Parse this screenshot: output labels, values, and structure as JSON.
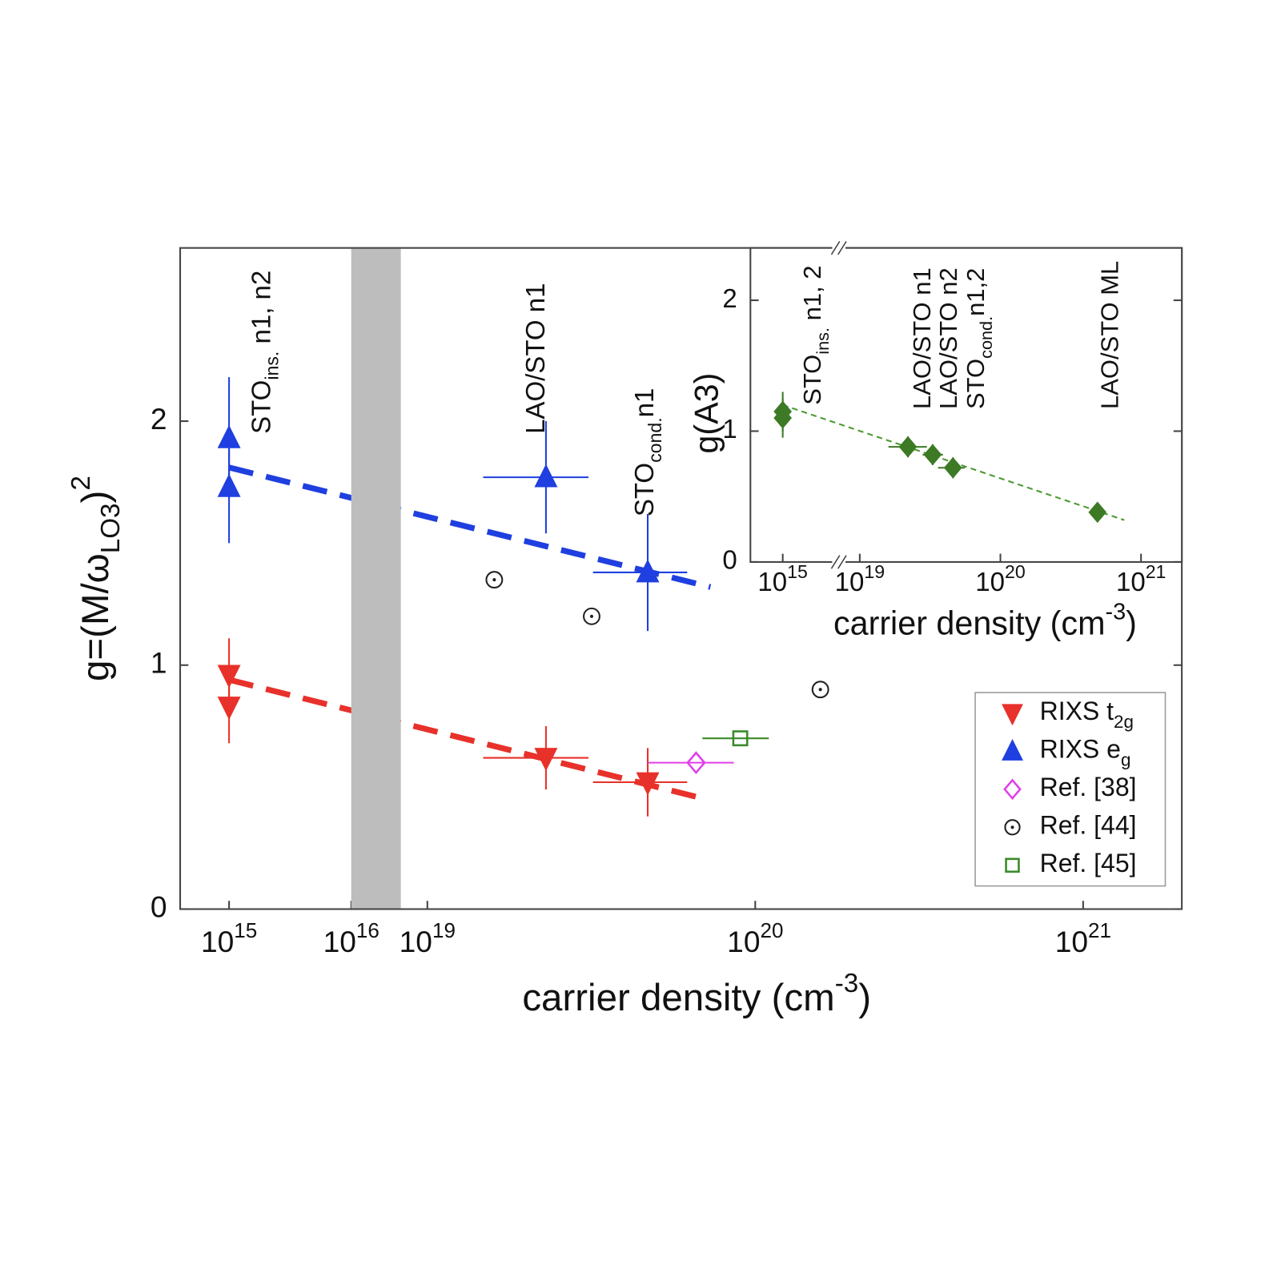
{
  "chart_data": [
    {
      "type": "scatter",
      "log_x": true,
      "xsegments": [
        {
          "xlim": [
            398000000000000.0,
            1e+16
          ],
          "xticks": [
            {
              "value": 1000000000000000.0,
              "label": "10",
              "sup": "15"
            },
            {
              "value": 1e+16,
              "label": "10",
              "sup": "16"
            }
          ]
        },
        {
          "xlim": [
            8.3e+18,
            2e+21
          ],
          "xticks": [
            {
              "value": 1e+19,
              "label": "10",
              "sup": "19"
            },
            {
              "value": 1e+20,
              "label": "10",
              "sup": "20"
            },
            {
              "value": 1e+21,
              "label": "10",
              "sup": "21"
            }
          ]
        }
      ],
      "ylim": [
        0,
        2.71
      ],
      "yticks": [
        0,
        1,
        2
      ],
      "xlabel": {
        "text": "carrier density (cm",
        "sup": "-3",
        "after": ")"
      },
      "ylabel": {
        "text": "g=(M/ω",
        "sub": "LO3",
        "after": ")",
        "sup": "2"
      },
      "legend": "lower right",
      "annotations": [
        {
          "text": "STO",
          "sub": "ins.",
          "after": " n1, n2"
        },
        {
          "text": "LAO/STO n1"
        },
        {
          "text": "STO",
          "sub": "cond.",
          "after": "n1"
        }
      ],
      "series": [
        {
          "name": {
            "text": "RIXS t",
            "sub": "2g"
          },
          "color": "#e8312a",
          "marker": "v",
          "filled": true,
          "x": [
            1000000000000000.0,
            1000000000000000.0,
            2.3e+19,
            4.7e+19
          ],
          "values": [
            0.96,
            0.83,
            0.62,
            0.52
          ],
          "yerr": [
            0.15,
            0.15,
            0.13,
            0.14
          ],
          "xlow": [
            null,
            null,
            1.48e+19,
            3.2e+19
          ],
          "xhigh": [
            null,
            null,
            3.1e+19,
            6.2e+19
          ]
        },
        {
          "name": {
            "text": "RIXS e",
            "sub": "g"
          },
          "color": "#1f3fe0",
          "marker": "^",
          "filled": true,
          "x": [
            1000000000000000.0,
            1000000000000000.0,
            2.3e+19,
            4.7e+19
          ],
          "values": [
            1.93,
            1.73,
            1.77,
            1.38
          ],
          "yerr": [
            0.25,
            0.23,
            0.23,
            0.24
          ],
          "xlow": [
            null,
            null,
            1.48e+19,
            3.2e+19
          ],
          "xhigh": [
            null,
            null,
            3.1e+19,
            6.2e+19
          ]
        },
        {
          "name": {
            "text": "Ref. [38]"
          },
          "color": "#e040e8",
          "marker": "D",
          "filled": false,
          "x": [
            6.6e+19
          ],
          "values": [
            0.6
          ],
          "xlow": [
            4.7e+19
          ],
          "xhigh": [
            8.6e+19
          ]
        },
        {
          "name": {
            "text": "Ref. [44]"
          },
          "color": "#222222",
          "marker": "o",
          "filled": false,
          "x": [
            1.6e+19,
            3.17e+19,
            1.58e+20
          ],
          "values": [
            1.35,
            1.2,
            0.9
          ]
        },
        {
          "name": {
            "text": "Ref. [45]"
          },
          "color": "#3a8a2a",
          "marker": "s",
          "filled": false,
          "x": [
            9e+19
          ],
          "values": [
            0.7
          ],
          "xlow": [
            6.9e+19
          ],
          "xhigh": [
            1.1e+20
          ]
        }
      ],
      "fits": [
        {
          "color": "#1f3fe0",
          "x": [
            1000000000000000.0,
            7.3e+19
          ],
          "values": [
            1.81,
            1.32
          ]
        },
        {
          "color": "#e8312a",
          "x": [
            1000000000000000.0,
            7.1e+19
          ],
          "values": [
            0.94,
            0.45
          ]
        }
      ]
    },
    {
      "type": "scatter",
      "log_x": true,
      "xsegments": [
        {
          "xlim": [
            590000000000000.0,
            2500000000000000.0
          ],
          "xticks": [
            {
              "value": 1000000000000000.0,
              "label": "10",
              "sup": "15"
            }
          ]
        },
        {
          "xlim": [
            7.1e+18,
            1.95e+21
          ],
          "xticks": [
            {
              "value": 1e+19,
              "label": "10",
              "sup": "19"
            },
            {
              "value": 1e+20,
              "label": "10",
              "sup": "20"
            },
            {
              "value": 1e+21,
              "label": "10",
              "sup": "21"
            }
          ]
        }
      ],
      "ylim": [
        0,
        2.4
      ],
      "yticks": [
        0,
        1,
        2
      ],
      "xlabel": {
        "text": "carrier density (cm",
        "sup": "-3",
        "after": ")"
      },
      "ylabel": {
        "text": "g(A3)"
      },
      "annotations": [
        {
          "text": "STO",
          "sub": "ins.",
          "after": " n1, 2"
        },
        {
          "text": "LAO/STO n1"
        },
        {
          "text": "LAO/STO n2"
        },
        {
          "text": "STO",
          "sub": "cond.",
          "after": "n1,2"
        },
        {
          "text": "LAO/STO ML"
        }
      ],
      "series": [
        {
          "color": "#3d7a25",
          "marker": "D",
          "filled": true,
          "x": [
            1000000000000000.0,
            1000000000000000.0,
            2.2e+19,
            3.3e+19,
            4.6e+19,
            4.9e+20
          ],
          "values": [
            1.15,
            1.1,
            0.88,
            0.82,
            0.72,
            0.38
          ],
          "yerr": [
            0.15,
            0.15,
            0.08,
            0.08,
            0.08,
            0.07
          ],
          "xlow": [
            null,
            null,
            1.6e+19,
            2.8e+19,
            3.6e+19,
            null
          ],
          "xhigh": [
            null,
            null,
            3e+19,
            3.9e+19,
            5.6e+19,
            null
          ]
        }
      ],
      "fits": [
        {
          "color": "#4a9a30",
          "x": [
            1000000000000000.0,
            7.6e+20
          ],
          "values": [
            1.2,
            0.32
          ]
        }
      ]
    }
  ]
}
